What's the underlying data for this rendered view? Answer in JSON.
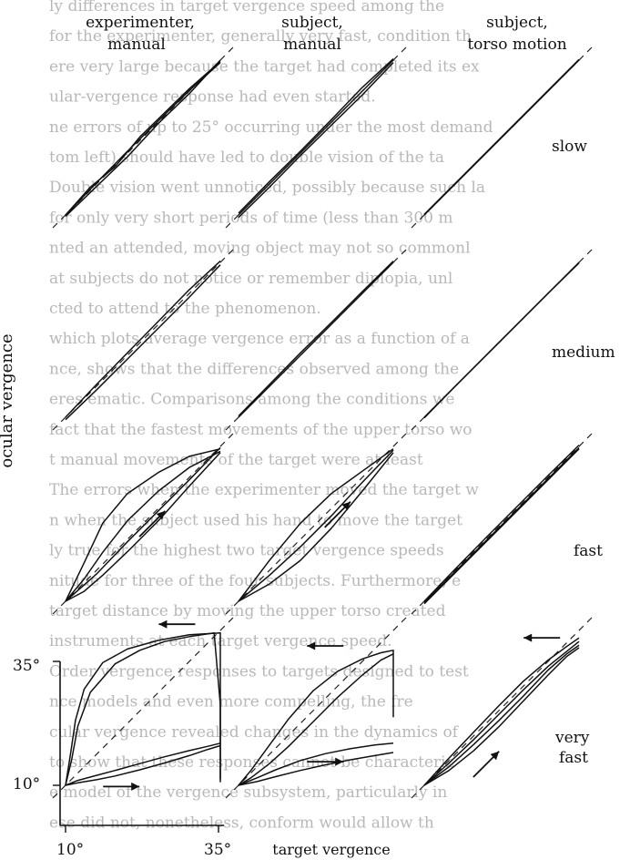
{
  "figure": {
    "column_titles": [
      {
        "line1": "experimenter,",
        "line2": "manual"
      },
      {
        "line1": "subject,",
        "line2": "manual"
      },
      {
        "line1": "subject,",
        "line2": "torso motion"
      }
    ],
    "row_labels": [
      "slow",
      "medium",
      "fast",
      "very fast"
    ],
    "row_label_words": [
      [
        "slow"
      ],
      [
        "medium"
      ],
      [
        "fast"
      ],
      [
        "very",
        "fast"
      ]
    ],
    "y_axis_label": "ocular vergence",
    "x_axis_label": "target vergence",
    "tick_labels": {
      "y_top": "35°",
      "y_bottom": "10°",
      "x_left": "10°",
      "x_right": "35°"
    },
    "bleed_through_text": [
      "ly differences in target vergence speed among the",
      "for the experimenter, generally very fast, condition th",
      "ere very large because the target had completed its ex",
      "ular-vergence response had even started.",
      "ne errors of up to 25° occurring under the most demand",
      "tom left) should have led to double vision of the ta",
      "Double vision went unnoticed, possibly because such la",
      "for only very short periods of time (less than 300 m",
      "nted an attended, moving object may not so commonl",
      "at subjects do not notice or remember diplopia, unl",
      "cted to attend to the phenomenon.",
      "which plots average vergence error as a function of a",
      "nce, shows that the differences observed among the",
      "eres ematic. Comparisons among the conditions we",
      "fact that the fastest movements of the upper torso wo",
      "t manual movements of the target were at least",
      "The errors when the experimenter moved the target w",
      "n when the subject used his hand to move the target",
      "ly true for the highest two target vergence speeds",
      "nitude for three of the four subjects. Furthermore, e",
      "target distance by moving the upper torso created",
      "instruments at each target vergence speed.",
      "Order vergence responses to targets designed to test",
      "nce models and even more compelling, the fre",
      "cular vergence revealed changes in the dynamics of",
      "to show that these responses cannot be characteriz",
      "e model of the vergence subsystem, particularly in",
      "ese did not, nonetheless, conform would allow th"
    ]
  },
  "chart_data": {
    "type": "line",
    "description_axes": {
      "x": {
        "label": "target vergence",
        "range": [
          10,
          35
        ],
        "unit": "deg"
      },
      "y": {
        "label": "ocular vergence",
        "range": [
          10,
          35
        ],
        "unit": "deg"
      }
    },
    "reference_line": "identity (ocular vergence = target vergence), dashed",
    "columns": [
      "experimenter, manual",
      "subject, manual",
      "subject, torso motion"
    ],
    "rows": [
      "slow",
      "medium",
      "fast",
      "very fast"
    ],
    "panels": [
      {
        "row": "slow",
        "column": "experimenter, manual",
        "traces": [
          {
            "name": "",
            "x": [
              10,
              15,
              20,
              25,
              30,
              35
            ],
            "y": [
              10,
              15.2,
              20.3,
              25.2,
              30.1,
              34.6
            ]
          },
          {
            "name": "",
            "x": [
              10,
              15,
              20,
              25,
              30,
              35
            ],
            "y": [
              9.8,
              14.6,
              19.4,
              24.8,
              29.6,
              35
            ]
          },
          {
            "name": "",
            "x": [
              10,
              14,
              18,
              22,
              26,
              30,
              35
            ],
            "y": [
              10,
              14.5,
              17.8,
              22.6,
              26.5,
              30.4,
              34.8
            ]
          }
        ]
      },
      {
        "row": "slow",
        "column": "subject, manual",
        "traces": [
          {
            "name": "",
            "x": [
              10,
              15,
              20,
              25,
              30,
              35
            ],
            "y": [
              10,
              15,
              20,
              25,
              30,
              35
            ]
          },
          {
            "name": "",
            "x": [
              10,
              15,
              20,
              25,
              30,
              35
            ],
            "y": [
              9.6,
              14.5,
              19.6,
              24.5,
              29.4,
              34.6
            ]
          },
          {
            "name": "",
            "x": [
              10,
              15,
              20,
              25,
              30,
              35
            ],
            "y": [
              10.3,
              15.4,
              20.3,
              25.4,
              30.6,
              35.2
            ]
          }
        ]
      },
      {
        "row": "slow",
        "column": "subject, torso motion",
        "traces": [
          {
            "name": "",
            "x": [
              10,
              15,
              20,
              25,
              30,
              35
            ],
            "y": [
              10,
              15,
              20,
              25,
              30,
              35
            ]
          },
          {
            "name": "",
            "x": [
              10,
              15,
              20,
              25,
              30,
              35
            ],
            "y": [
              10.1,
              15.1,
              20.1,
              25.1,
              30.1,
              35.1
            ]
          }
        ]
      },
      {
        "row": "medium",
        "column": "experimenter, manual",
        "traces": [
          {
            "name": "",
            "x": [
              10,
              15,
              20,
              25,
              30,
              35
            ],
            "y": [
              10,
              15.3,
              20.4,
              25.5,
              30.6,
              35.2
            ]
          },
          {
            "name": "",
            "x": [
              10,
              15,
              20,
              25,
              30,
              35
            ],
            "y": [
              9.6,
              14.4,
              19.4,
              24.4,
              29.4,
              34.6
            ]
          }
        ]
      },
      {
        "row": "medium",
        "column": "subject, manual",
        "traces": [
          {
            "name": "",
            "x": [
              10,
              15,
              20,
              25,
              30,
              35
            ],
            "y": [
              10,
              15,
              20,
              25,
              30,
              35
            ]
          },
          {
            "name": "",
            "x": [
              10,
              15,
              20,
              25,
              30,
              35
            ],
            "y": [
              10.2,
              15.3,
              20.4,
              25.3,
              30.3,
              35.2
            ]
          }
        ]
      },
      {
        "row": "medium",
        "column": "subject, torso motion",
        "traces": [
          {
            "name": "",
            "x": [
              10,
              15,
              20,
              25,
              30,
              35
            ],
            "y": [
              10,
              15,
              20,
              25,
              30,
              35
            ]
          },
          {
            "name": "",
            "x": [
              10,
              15,
              20,
              25,
              30,
              35
            ],
            "y": [
              9.9,
              15,
              20,
              25,
              30,
              34.9
            ]
          }
        ]
      },
      {
        "row": "fast",
        "column": "experimenter, manual",
        "traces": [
          {
            "name": "",
            "x": [
              10,
              13,
              16,
              20,
              25,
              30,
              35
            ],
            "y": [
              10,
              16.2,
              22.6,
              27.4,
              30.8,
              33.4,
              34.6
            ]
          },
          {
            "name": "",
            "x": [
              10,
              13,
              16,
              20,
              25,
              30,
              35
            ],
            "y": [
              10,
              13.6,
              17.9,
              23,
              27.8,
              31.6,
              34.2
            ]
          },
          {
            "name": "",
            "x": [
              10,
              13,
              16,
              20,
              25,
              30,
              35
            ],
            "y": [
              10,
              11.6,
              14.2,
              18,
              23,
              28.6,
              34
            ]
          },
          {
            "name": "",
            "x": [
              10,
              15,
              20,
              25,
              30,
              35
            ],
            "y": [
              10,
              14.4,
              19.6,
              24.6,
              29.6,
              34.8
            ]
          }
        ]
      },
      {
        "row": "fast",
        "column": "subject, manual",
        "traces": [
          {
            "name": "",
            "x": [
              10,
              15,
              20,
              25,
              30,
              35
            ],
            "y": [
              10,
              16.6,
              22.6,
              27.4,
              31,
              34.6
            ]
          },
          {
            "name": "",
            "x": [
              10,
              15,
              20,
              25,
              30,
              35
            ],
            "y": [
              10,
              14.2,
              18.8,
              23.8,
              29.2,
              34.4
            ]
          },
          {
            "name": "",
            "x": [
              10,
              15,
              20,
              25,
              30,
              35
            ],
            "y": [
              10,
              12.8,
              16.6,
              21.8,
              27.8,
              34
            ]
          }
        ]
      },
      {
        "row": "fast",
        "column": "subject, torso motion",
        "traces": [
          {
            "name": "",
            "x": [
              10,
              15,
              20,
              25,
              30,
              35
            ],
            "y": [
              10,
              15.2,
              20.3,
              25.3,
              30.3,
              35.2
            ]
          },
          {
            "name": "",
            "x": [
              10,
              15,
              20,
              25,
              30,
              35
            ],
            "y": [
              9.6,
              14.6,
              19.6,
              24.6,
              29.6,
              34.6
            ]
          },
          {
            "name": "",
            "x": [
              10,
              15,
              20,
              25,
              30,
              35
            ],
            "y": [
              9.8,
              14.8,
              19.8,
              24.8,
              29.8,
              34.8
            ]
          }
        ]
      },
      {
        "row": "very fast",
        "column": "experimenter, manual",
        "traces": [
          {
            "name": "",
            "x": [
              10,
              10.8,
              11.6,
              13,
              16,
              20,
              25,
              30,
              35,
              35,
              35
            ],
            "y": [
              10,
              15,
              20.5,
              25.5,
              29.8,
              32,
              33.4,
              34.3,
              34.6,
              22,
              10.5
            ]
          },
          {
            "name": "",
            "x": [
              10,
              11,
              12,
              14,
              18,
              22,
              26,
              30,
              34,
              35,
              35
            ],
            "y": [
              10,
              14.2,
              19.6,
              25,
              29.6,
              31.8,
              33.2,
              34,
              34.6,
              23,
              11
            ]
          },
          {
            "name": "",
            "x": [
              10,
              12,
              15,
              18,
              22,
              26,
              30,
              33,
              35
            ],
            "y": [
              10,
              10.4,
              10.9,
              11.5,
              12.5,
              13.6,
              14.8,
              15.8,
              16.4
            ]
          },
          {
            "name": "",
            "x": [
              10,
              12,
              15,
              18,
              22,
              26,
              30,
              33,
              35
            ],
            "y": [
              10,
              10.8,
              11.6,
              12.4,
              13.5,
              14.6,
              15.6,
              16.3,
              16.8
            ]
          }
        ]
      },
      {
        "row": "very fast",
        "column": "subject, manual",
        "traces": [
          {
            "name": "",
            "x": [
              10,
              12,
              15,
              18,
              22,
              26,
              30,
              33,
              35,
              35
            ],
            "y": [
              10,
              12.4,
              16.5,
              20.6,
              25.2,
              28.4,
              30.4,
              31.4,
              31.8,
              21
            ]
          },
          {
            "name": "",
            "x": [
              10,
              12,
              15,
              18,
              22,
              26,
              30,
              33,
              35
            ],
            "y": [
              10,
              11.2,
              13.5,
              16.2,
              20.2,
              24.2,
              27.8,
              30.2,
              31.2
            ]
          },
          {
            "name": "",
            "x": [
              10,
              13,
              16,
              20,
              24,
              28,
              32,
              35
            ],
            "y": [
              10,
              10.6,
              11.4,
              12.4,
              13.3,
              14.1,
              14.8,
              15.3
            ]
          },
          {
            "name": "",
            "x": [
              10,
              13,
              16,
              20,
              24,
              28,
              32,
              35
            ],
            "y": [
              10,
              11.2,
              12.5,
              14,
              15.1,
              15.9,
              16.5,
              16.8
            ]
          }
        ]
      },
      {
        "row": "very fast",
        "column": "subject, torso motion",
        "traces": [
          {
            "name": "",
            "x": [
              10,
              14,
              18,
              22,
              26,
              30,
              33,
              35
            ],
            "y": [
              10,
              14.4,
              18.6,
              22.8,
              26.8,
              30.2,
              32.4,
              33.8
            ]
          },
          {
            "name": "",
            "x": [
              10,
              14,
              18,
              22,
              26,
              30,
              33,
              35
            ],
            "y": [
              10,
              13.6,
              17.4,
              21.4,
              25.4,
              29.2,
              31.6,
              33.2
            ]
          },
          {
            "name": "",
            "x": [
              10,
              14,
              18,
              22,
              26,
              30,
              33,
              35
            ],
            "y": [
              10,
              13,
              16.6,
              20.4,
              24.4,
              28.6,
              31.2,
              32.6
            ]
          },
          {
            "name": "",
            "x": [
              10,
              14,
              18,
              22,
              26,
              30,
              33,
              35
            ],
            "y": [
              10,
              12.4,
              15.6,
              19.4,
              23.6,
              27.8,
              30.8,
              32.2
            ]
          }
        ]
      }
    ],
    "arrows": [
      {
        "row": "fast",
        "column": "experimenter, manual",
        "direction": "up-right",
        "at": [
          24,
          22.5
        ]
      },
      {
        "row": "fast",
        "column": "subject, manual",
        "direction": "up-right",
        "at": [
          26,
          24
        ]
      },
      {
        "row": "very fast",
        "column": "experimenter, manual",
        "direction": "left",
        "at": [
          28,
          36
        ]
      },
      {
        "row": "very fast",
        "column": "experimenter, manual",
        "direction": "right",
        "at": [
          19,
          9.8
        ]
      },
      {
        "row": "very fast",
        "column": "subject, manual",
        "direction": "left",
        "at": [
          24,
          32.5
        ]
      },
      {
        "row": "very fast",
        "column": "subject, manual",
        "direction": "right",
        "at": [
          24,
          13.8
        ]
      },
      {
        "row": "very fast",
        "column": "subject, torso motion",
        "direction": "left",
        "at": [
          29,
          33.8
        ]
      },
      {
        "row": "very fast",
        "column": "subject, torso motion",
        "direction": "up-right",
        "at": [
          20,
          13.4
        ]
      }
    ],
    "grid": false
  }
}
